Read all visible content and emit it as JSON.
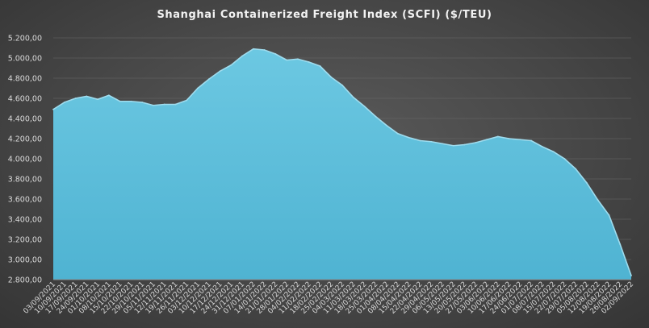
{
  "chart_data": {
    "type": "area",
    "title": "Shanghai Containerized Freight Index  (SCFI) ($/TEU)",
    "xlabel": "",
    "ylabel": "",
    "ylim": [
      2800,
      5200
    ],
    "ytick_step": 200,
    "ytick_labels": [
      "2.800,00",
      "3.000,00",
      "3.200,00",
      "3.400,00",
      "3.600,00",
      "3.800,00",
      "4.000,00",
      "4.200,00",
      "4.400,00",
      "4.600,00",
      "4.800,00",
      "5.000,00",
      "5.200,00"
    ],
    "grid": true,
    "legend": "none",
    "colors": {
      "area": "#53b8d6",
      "area_top": "#6cc8e2",
      "line": "#9fdcee"
    },
    "x": [
      "03/09/2021",
      "10/09/2021",
      "17/09/2021",
      "24/09/2021",
      "01/10/2021",
      "08/10/2021",
      "15/10/2021",
      "22/10/2021",
      "29/10/2021",
      "05/11/2021",
      "12/11/2021",
      "19/11/2021",
      "26/11/2021",
      "03/12/2021",
      "10/12/2021",
      "17/12/2021",
      "24/12/2021",
      "31/12/2021",
      "07/01/2022",
      "14/01/2022",
      "21/01/2022",
      "28/01/2022",
      "04/02/2022",
      "11/02/2022",
      "18/02/2022",
      "25/02/2022",
      "04/03/2022",
      "11/03/2022",
      "18/03/2022",
      "25/03/2022",
      "01/04/2022",
      "08/04/2022",
      "15/04/2022",
      "22/04/2022",
      "29/04/2022",
      "06/05/2022",
      "13/05/2022",
      "20/05/2022",
      "27/05/2022",
      "03/06/2022",
      "10/06/2022",
      "17/06/2022",
      "24/06/2022",
      "01/07/2022",
      "08/07/2022",
      "15/07/2022",
      "22/07/2022",
      "29/07/2022",
      "05/08/2022",
      "12/08/2022",
      "19/08/2022",
      "26/08/2022",
      "02/09/2022"
    ],
    "values": [
      4490,
      4560,
      4600,
      4620,
      4590,
      4630,
      4570,
      4570,
      4560,
      4530,
      4540,
      4540,
      4580,
      4700,
      4790,
      4870,
      4930,
      5020,
      5090,
      5080,
      5040,
      4980,
      4990,
      4960,
      4920,
      4810,
      4730,
      4610,
      4520,
      4420,
      4330,
      4250,
      4210,
      4180,
      4170,
      4150,
      4130,
      4140,
      4160,
      4190,
      4220,
      4200,
      4190,
      4180,
      4120,
      4070,
      4000,
      3900,
      3760,
      3590,
      3440,
      3150,
      2840
    ]
  }
}
